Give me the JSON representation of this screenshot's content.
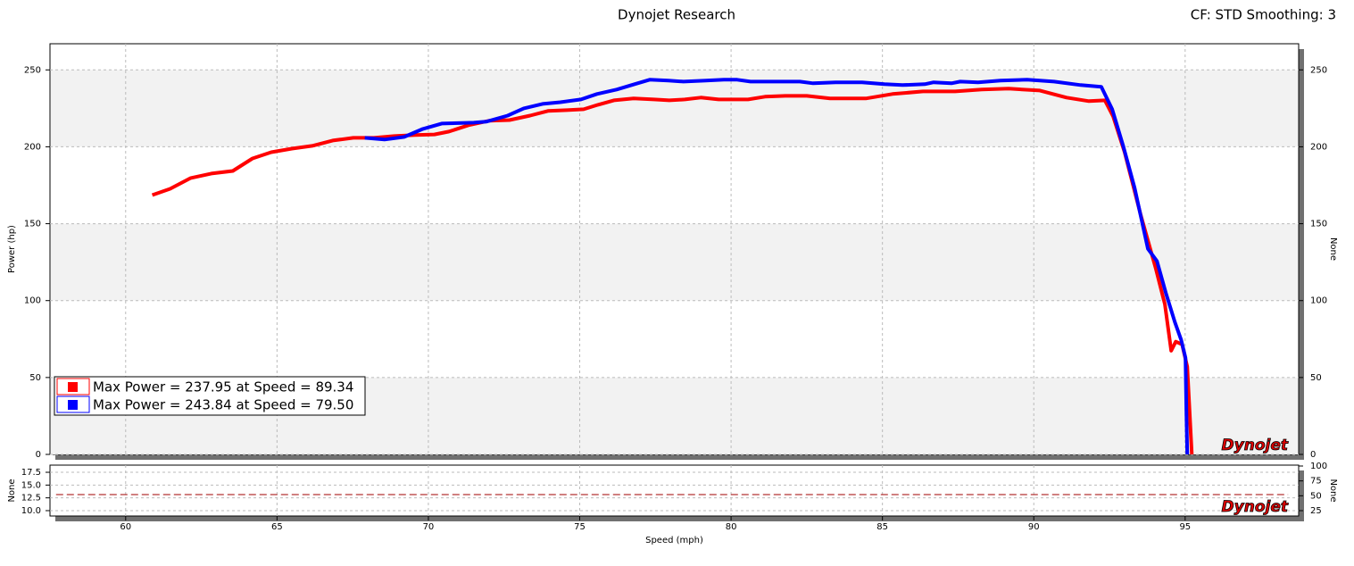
{
  "title": "Dynojet Research",
  "subtitle": "CF: STD Smoothing: 3",
  "logo": "Dynojet",
  "chart_data": [
    {
      "type": "line",
      "y_label": "Power (hp)",
      "y2_label": "None",
      "xlim": [
        57.5,
        98.75
      ],
      "xticks": [
        60,
        65,
        70,
        75,
        80,
        85,
        90,
        95
      ],
      "ylim": [
        0,
        267
      ],
      "yticks": [
        0,
        50,
        100,
        150,
        200,
        250
      ],
      "y2lim": [
        0,
        267
      ],
      "y2ticks": [
        0,
        50,
        100,
        150,
        200,
        250
      ],
      "grid": true,
      "bands": true,
      "legend": "lower-left",
      "series": [
        {
          "name": "Max Power = 237.95 at Speed = 89.34",
          "color": "#ff0000",
          "x": [
            60.88,
            61.47,
            62.15,
            62.83,
            63.54,
            64.19,
            64.81,
            65.49,
            66.16,
            66.84,
            67.52,
            68.2,
            68.88,
            69.56,
            70.2,
            70.68,
            71.32,
            72.0,
            72.68,
            73.36,
            73.95,
            74.57,
            75.13,
            75.6,
            76.13,
            76.78,
            77.46,
            77.96,
            78.47,
            79.0,
            79.59,
            80.56,
            81.12,
            81.79,
            82.5,
            83.27,
            84.45,
            85.33,
            86.34,
            87.4,
            88.28,
            89.17,
            90.2,
            91.08,
            91.82,
            92.35,
            92.62,
            93.0,
            93.53,
            94.03,
            94.33,
            94.54,
            94.69,
            94.9,
            95.07,
            95.22
          ],
          "values": [
            168.6,
            172.7,
            179.7,
            182.6,
            184.3,
            192.4,
            196.5,
            198.8,
            200.6,
            204.1,
            205.8,
            205.8,
            207,
            207.6,
            208,
            209.9,
            214,
            216.9,
            217.4,
            220.3,
            223.3,
            223.8,
            224.4,
            227.3,
            230.2,
            231.4,
            230.8,
            230.2,
            230.8,
            232,
            230.8,
            230.8,
            232.6,
            233.1,
            233.1,
            231.4,
            231.4,
            234.3,
            236,
            236,
            237.2,
            237.8,
            236.6,
            232,
            229.7,
            230.2,
            219.8,
            196.5,
            155.8,
            120.9,
            97.7,
            67.4,
            73.3,
            71.5,
            57.0,
            0
          ]
        },
        {
          "name": "Max Power = 243.84 at Speed = 79.50",
          "color": "#0000ff",
          "x": [
            67.9,
            68.55,
            69.2,
            69.82,
            70.44,
            71.5,
            71.91,
            72.62,
            73.15,
            73.77,
            74.36,
            75.04,
            75.57,
            76.22,
            76.81,
            77.31,
            77.93,
            78.43,
            79.17,
            79.76,
            80.2,
            80.64,
            81.53,
            82.27,
            82.71,
            83.45,
            84.33,
            85.07,
            85.66,
            86.4,
            86.69,
            87.28,
            87.57,
            88.16,
            88.9,
            89.78,
            90.67,
            91.55,
            92.23,
            92.59,
            92.97,
            93.33,
            93.77,
            94.07,
            94.36,
            94.66,
            94.87,
            95.01,
            95.04,
            95.07
          ],
          "values": [
            205.8,
            204.7,
            206.4,
            211.6,
            215.1,
            215.7,
            216.3,
            220.3,
            225,
            227.9,
            229,
            230.8,
            234.3,
            237.2,
            240.7,
            243.6,
            243,
            242.4,
            243,
            243.6,
            243.6,
            242.4,
            242.4,
            242.4,
            241.3,
            241.9,
            241.9,
            240.7,
            240.1,
            240.7,
            241.9,
            241.3,
            242.4,
            241.9,
            243,
            243.6,
            242.4,
            240.1,
            239,
            224.4,
            199.4,
            173.3,
            133.7,
            125.6,
            105.2,
            86,
            74.4,
            62.8,
            27.9,
            0
          ]
        }
      ]
    },
    {
      "type": "line",
      "x_label": "Speed (mph)",
      "y_label": "None",
      "y2_label": "None",
      "xlim": [
        57.5,
        98.75
      ],
      "xticks": [
        60,
        65,
        70,
        75,
        80,
        85,
        90,
        95
      ],
      "ylim": [
        8.95,
        18.9
      ],
      "yticks": [
        {
          "value": 10,
          "label": "10.0"
        },
        12.5,
        {
          "value": 15,
          "label": "15.0"
        },
        17.5
      ],
      "y2lim": [
        16,
        101.5
      ],
      "y2ticks": [
        25,
        50,
        75,
        100
      ],
      "grid": true,
      "bands": false,
      "series": [
        {
          "color": "#a00000",
          "axis": "y2",
          "dashed": true,
          "x": [
            57.7,
            98.4
          ],
          "values": [
            52,
            52
          ]
        }
      ]
    }
  ]
}
